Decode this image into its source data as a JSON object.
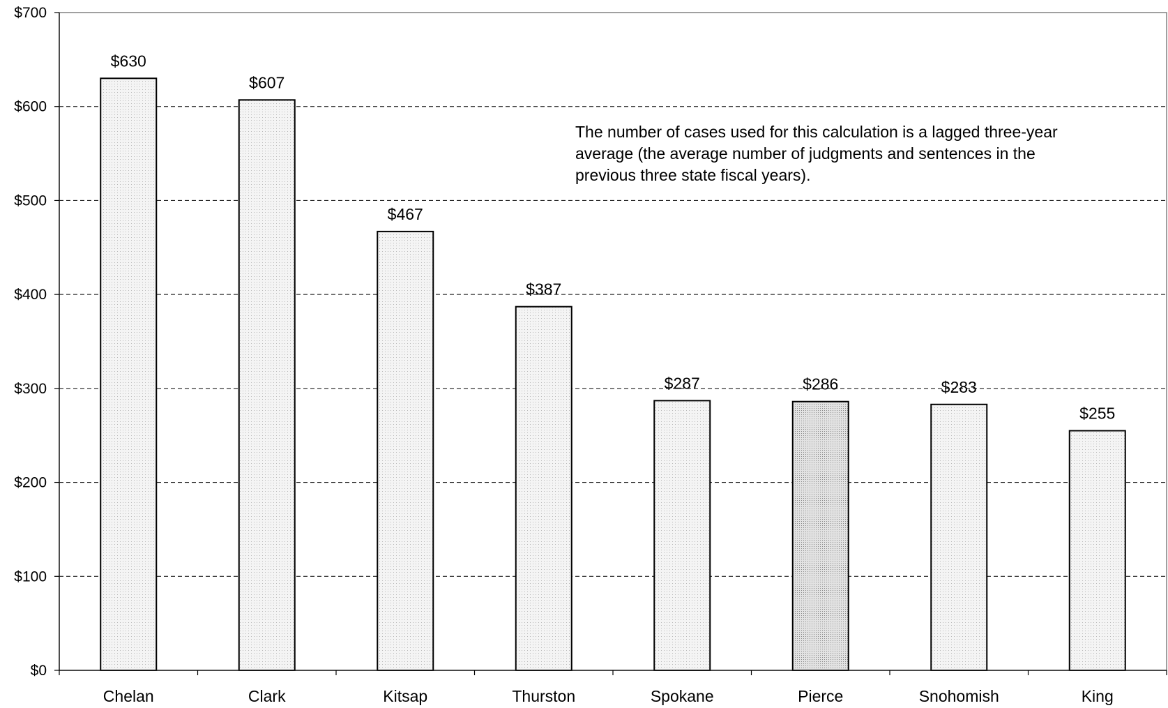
{
  "chart_data": {
    "type": "bar",
    "categories": [
      "Chelan",
      "Clark",
      "Kitsap",
      "Thurston",
      "Spokane",
      "Pierce",
      "Snohomish",
      "King"
    ],
    "values": [
      630,
      607,
      467,
      387,
      287,
      286,
      283,
      255
    ],
    "data_labels": [
      "$630",
      "$607",
      "$467",
      "$387",
      "$287",
      "$286",
      "$283",
      "$255"
    ],
    "ylim": [
      0,
      700
    ],
    "yticks": [
      0,
      100,
      200,
      300,
      400,
      500,
      600,
      700
    ],
    "ytick_labels": [
      "$0",
      "$100",
      "$200",
      "$300",
      "$400",
      "$500",
      "$600",
      "$700"
    ],
    "grid": true,
    "highlight_category": "Pierce",
    "annotation": [
      "The number of cases used for this calculation is a lagged three-year",
      "average (the average number of judgments and sentences in the",
      "previous three state fiscal years)."
    ],
    "colors": {
      "bar_fill": "#ececec",
      "bar_highlight_fill": "#cfcfcf",
      "bar_stroke": "#000000",
      "grid": "#000000"
    }
  }
}
